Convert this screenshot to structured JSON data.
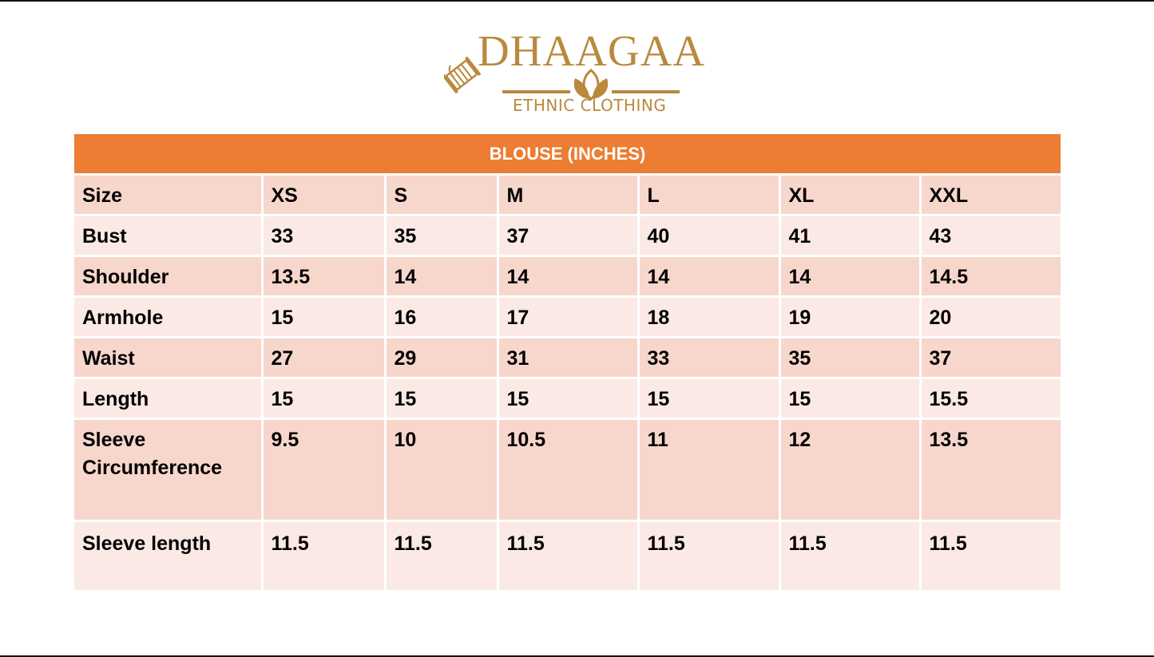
{
  "brand": {
    "name": "DHAAGAA",
    "tagline": "ETHNIC CLOTHING",
    "color": "#b9893d",
    "icons": [
      "thread-spool-icon",
      "lotus-icon"
    ]
  },
  "table": {
    "title": "BLOUSE (INCHES)",
    "header_color": "#ec7d32",
    "row_dark_color": "#f7d6cc",
    "row_light_color": "#fbe9e6",
    "columns": [
      "Size",
      "XS",
      "S",
      "M",
      "L",
      "XL",
      "XXL"
    ],
    "rows": [
      {
        "label": "Bust",
        "values": [
          "33",
          "35",
          "37",
          "40",
          "41",
          "43"
        ]
      },
      {
        "label": "Shoulder",
        "values": [
          "13.5",
          "14",
          "14",
          "14",
          "14",
          "14.5"
        ]
      },
      {
        "label": "Armhole",
        "values": [
          "15",
          "16",
          "17",
          "18",
          "19",
          "20"
        ]
      },
      {
        "label": "Waist",
        "values": [
          "27",
          "29",
          "31",
          "33",
          "35",
          "37"
        ]
      },
      {
        "label": "Length",
        "values": [
          "15",
          "15",
          "15",
          "15",
          "15",
          "15.5"
        ]
      },
      {
        "label": "Sleeve Circumference",
        "values": [
          "9.5",
          "10",
          "10.5",
          "11",
          "12",
          "13.5"
        ]
      },
      {
        "label": "Sleeve length",
        "values": [
          "11.5",
          "11.5",
          "11.5",
          "11.5",
          "11.5",
          "11.5"
        ]
      }
    ]
  }
}
